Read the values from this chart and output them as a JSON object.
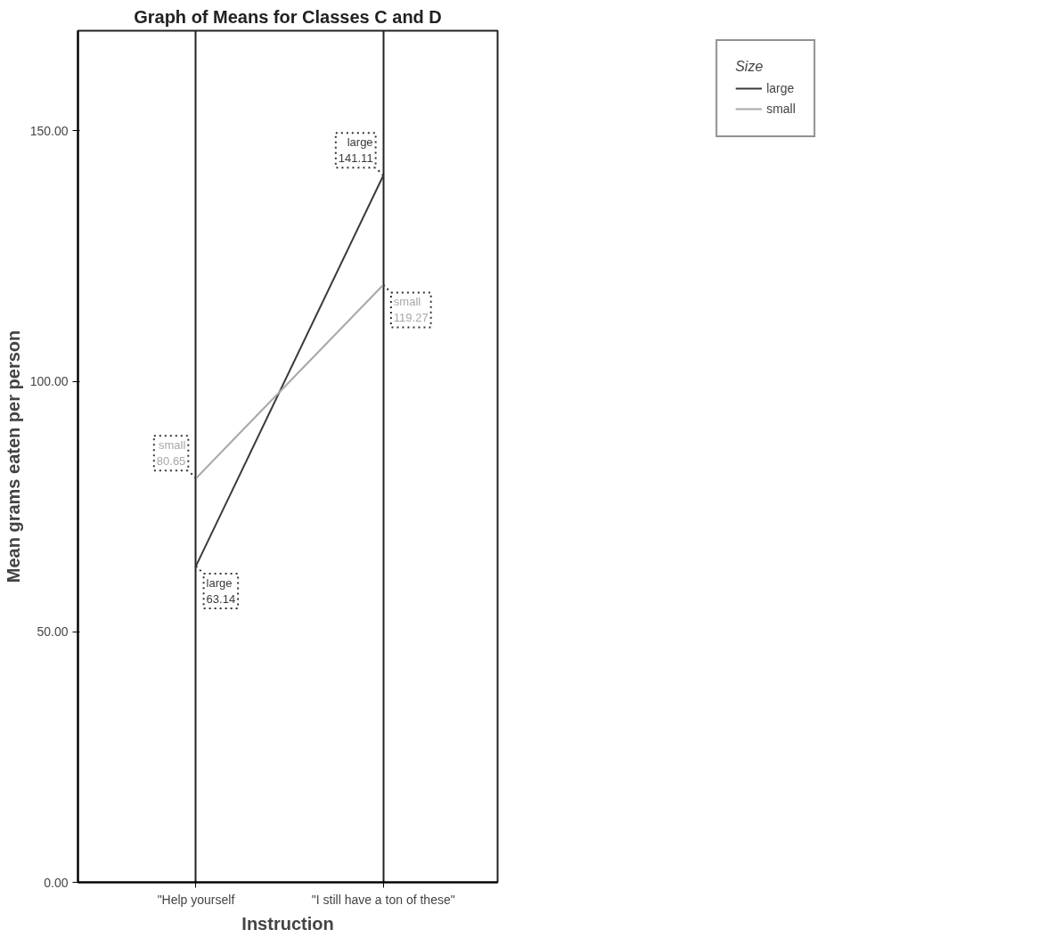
{
  "chart_data": {
    "type": "line",
    "title": "Graph of Means for Classes C and D",
    "xlabel": "Instruction",
    "ylabel": "Mean grams eaten per person",
    "legend_title": "Size",
    "categories": [
      "\"Help yourself",
      "\"I still have a ton of these\""
    ],
    "series": [
      {
        "name": "large",
        "color": "#3a3a3a",
        "values": [
          63.14,
          141.11
        ]
      },
      {
        "name": "small",
        "color": "#a8a8a8",
        "values": [
          80.65,
          119.27
        ]
      }
    ],
    "ylim": [
      0,
      170
    ],
    "yticks": [
      {
        "value": 0,
        "label": "0.00"
      },
      {
        "value": 50,
        "label": "50.00"
      },
      {
        "value": 100,
        "label": "100.00"
      },
      {
        "value": 150,
        "label": "150.00"
      }
    ],
    "grid": "x",
    "legend": "top right",
    "data_labels": true,
    "line_style": "solid",
    "marker": "none"
  }
}
